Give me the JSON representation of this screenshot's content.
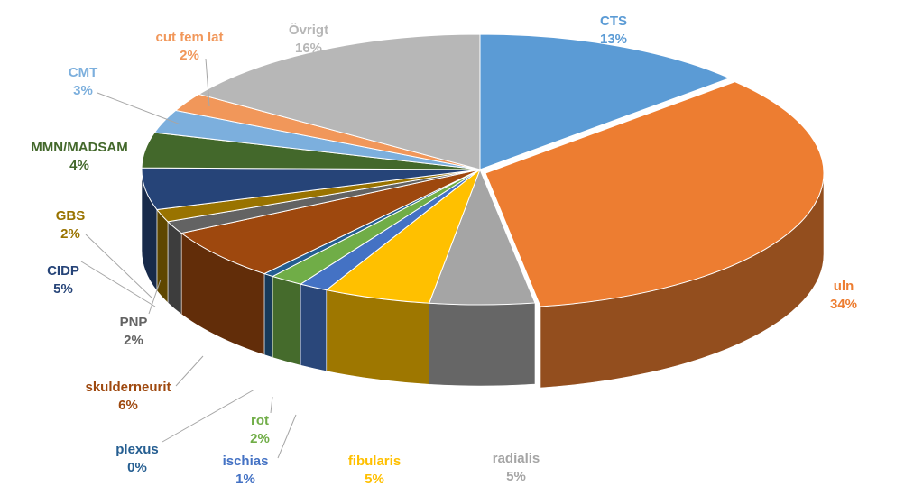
{
  "chart_data": {
    "type": "pie",
    "title": "",
    "style": "3d-exploded-tilted",
    "start_angle_deg": 90,
    "direction": "clockwise",
    "slices": [
      {
        "label": "CTS",
        "percent_label": "13%",
        "value": 13.2,
        "color": "#5b9bd5",
        "label_color": "#5b9bd5"
      },
      {
        "label": "uln",
        "percent_label": "34%",
        "value": 34.2,
        "color": "#ed7d31",
        "label_color": "#ed7d31"
      },
      {
        "label": "radialis",
        "percent_label": "5%",
        "value": 5.0,
        "color": "#a5a5a5",
        "label_color": "#a5a5a5"
      },
      {
        "label": "fibularis",
        "percent_label": "5%",
        "value": 5.1,
        "color": "#ffc000",
        "label_color": "#ffc000"
      },
      {
        "label": "ischias",
        "percent_label": "1%",
        "value": 1.4,
        "color": "#4472c4",
        "label_color": "#4472c4"
      },
      {
        "label": "rot",
        "percent_label": "2%",
        "value": 1.6,
        "color": "#70ad47",
        "label_color": "#70ad47"
      },
      {
        "label": "plexus",
        "percent_label": "0%",
        "value": 0.5,
        "color": "#255e91",
        "label_color": "#255e91"
      },
      {
        "label": "skulderneurit",
        "percent_label": "6%",
        "value": 6.2,
        "color": "#9e480e",
        "label_color": "#9e480e"
      },
      {
        "label": "PNP",
        "percent_label": "2%",
        "value": 1.5,
        "color": "#636363",
        "label_color": "#636363"
      },
      {
        "label": "GBS",
        "percent_label": "2%",
        "value": 1.5,
        "color": "#997300",
        "label_color": "#997300"
      },
      {
        "label": "CIDP",
        "percent_label": "5%",
        "value": 5.0,
        "color": "#264478",
        "label_color": "#264478"
      },
      {
        "label": "MMN/MADSAM",
        "percent_label": "4%",
        "value": 4.2,
        "color": "#43682b",
        "label_color": "#43682b"
      },
      {
        "label": "CMT",
        "percent_label": "3%",
        "value": 2.8,
        "color": "#7cafdd",
        "label_color": "#7cafdd"
      },
      {
        "label": "cut fem lat",
        "percent_label": "2%",
        "value": 2.2,
        "color": "#f1975a",
        "label_color": "#f1975a"
      },
      {
        "label": "Övrigt",
        "percent_label": "16%",
        "value": 15.6,
        "color": "#b7b7b7",
        "label_color": "#b7b7b7"
      }
    ]
  }
}
